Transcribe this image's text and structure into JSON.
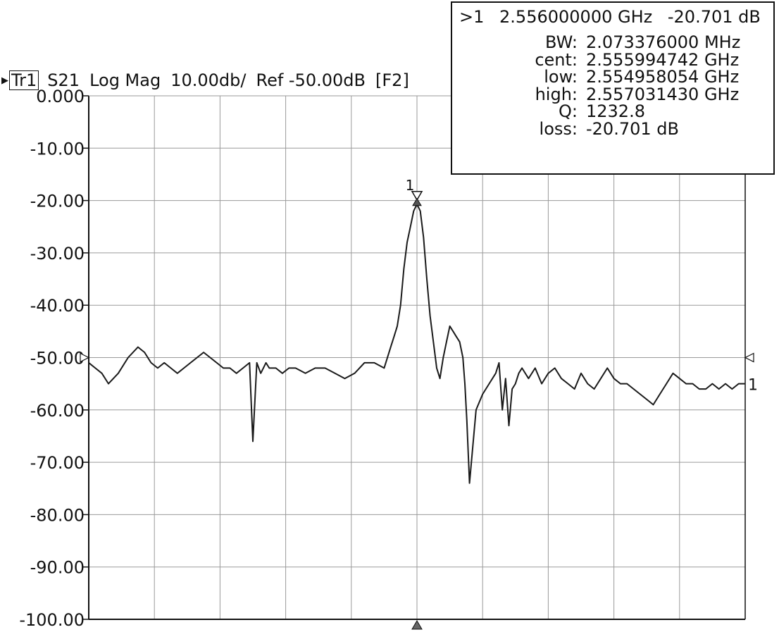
{
  "header": {
    "trace_label": "Tr1",
    "parameter": "S21",
    "format": "Log Mag",
    "scale": "10.00db/",
    "reference": "Ref  -50.00dB",
    "channel": "[F2]"
  },
  "marker_readout": {
    "marker_id": ">1",
    "frequency": "2.556000000 GHz",
    "value": "-20.701 dB",
    "rows": [
      {
        "key": "BW:",
        "value": "2.073376000 MHz"
      },
      {
        "key": "cent:",
        "value": "2.555994742 GHz"
      },
      {
        "key": "low:",
        "value": "2.554958054 GHz"
      },
      {
        "key": "high:",
        "value": "2.557031430 GHz"
      },
      {
        "key": "Q:",
        "value": "1232.8"
      },
      {
        "key": "loss:",
        "value": "-20.701 dB"
      }
    ]
  },
  "marker_label": "1",
  "trace_end_label": "1",
  "colors": {
    "trace": "#1a1a1a",
    "grid": "#9a9a9a",
    "axis": "#111111",
    "background": "#ffffff"
  },
  "chart_data": {
    "type": "line",
    "title": "",
    "xlabel": "",
    "ylabel": "",
    "ylim": [
      -100,
      0
    ],
    "xlim": [
      0,
      10
    ],
    "y_ticks": [
      "0.000",
      "-10.00",
      "-20.00",
      "-30.00",
      "-40.00",
      "-50.00",
      "-60.00",
      "-70.00",
      "-80.00",
      "-90.00",
      "-100.00"
    ],
    "y_tick_values": [
      0,
      -10,
      -20,
      -30,
      -40,
      -50,
      -60,
      -70,
      -80,
      -90,
      -100
    ],
    "x_divisions": 10,
    "grid": true,
    "reference_level": -50,
    "marker": {
      "x": 5,
      "y": -20.7
    },
    "series": [
      {
        "x": [
          0,
          0.1,
          0.2,
          0.3,
          0.45,
          0.6,
          0.75,
          0.85,
          0.95,
          1.05,
          1.15,
          1.25,
          1.35,
          1.45,
          1.55,
          1.65,
          1.75,
          1.85,
          1.95,
          2.05,
          2.15,
          2.25,
          2.35,
          2.45,
          2.5,
          2.56,
          2.59,
          2.62,
          2.66,
          2.7,
          2.75,
          2.85,
          2.95,
          3.05,
          3.15,
          3.3,
          3.45,
          3.6,
          3.75,
          3.9,
          4.05,
          4.2,
          4.35,
          4.5,
          4.6,
          4.65,
          4.7,
          4.75,
          4.8,
          4.85,
          4.9,
          4.95,
          5.0,
          5.05,
          5.1,
          5.15,
          5.2,
          5.25,
          5.3,
          5.35,
          5.4,
          5.45,
          5.5,
          5.55,
          5.6,
          5.65,
          5.7,
          5.73,
          5.76,
          5.8,
          5.9,
          6.0,
          6.1,
          6.2,
          6.25,
          6.3,
          6.35,
          6.4,
          6.45,
          6.5,
          6.55,
          6.6,
          6.7,
          6.8,
          6.9,
          7.0,
          7.1,
          7.2,
          7.3,
          7.4,
          7.5,
          7.6,
          7.7,
          7.8,
          7.9,
          8.0,
          8.1,
          8.2,
          8.3,
          8.4,
          8.5,
          8.6,
          8.7,
          8.8,
          8.9,
          9.0,
          9.1,
          9.2,
          9.3,
          9.4,
          9.5,
          9.6,
          9.7,
          9.8,
          9.9,
          10.0
        ],
        "y": [
          -51,
          -52,
          -53,
          -55,
          -53,
          -50,
          -48,
          -49,
          -51,
          -52,
          -51,
          -52,
          -53,
          -52,
          -51,
          -50,
          -49,
          -50,
          -51,
          -52,
          -52,
          -53,
          -52,
          -51,
          -66,
          -51,
          -52,
          -53,
          -52,
          -51,
          -52,
          -52,
          -53,
          -52,
          -52,
          -53,
          -52,
          -52,
          -53,
          -54,
          -53,
          -51,
          -51,
          -52,
          -48,
          -46,
          -44,
          -40,
          -33,
          -28,
          -25,
          -22,
          -20.7,
          -22,
          -27,
          -35,
          -42,
          -47,
          -52,
          -54,
          -50,
          -47,
          -44,
          -45,
          -46,
          -47,
          -50,
          -55,
          -62,
          -74,
          -60,
          -57,
          -55,
          -53,
          -51,
          -60,
          -54,
          -63,
          -56,
          -55,
          -53,
          -52,
          -54,
          -52,
          -55,
          -53,
          -52,
          -54,
          -55,
          -56,
          -53,
          -55,
          -56,
          -54,
          -52,
          -54,
          -55,
          -55,
          -56,
          -57,
          -58,
          -59,
          -57,
          -55,
          -53,
          -54,
          -55,
          -55,
          -56,
          -56,
          -55,
          -56,
          -55,
          -56,
          -55,
          -55
        ]
      }
    ]
  }
}
